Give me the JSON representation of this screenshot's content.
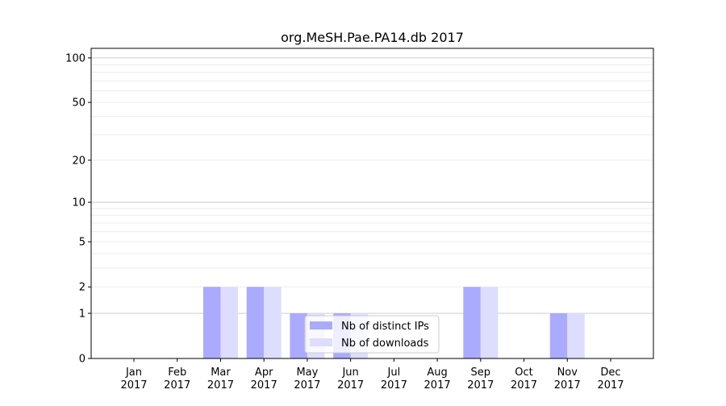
{
  "chart_data": {
    "type": "bar",
    "title": "org.MeSH.Pae.PA14.db 2017",
    "xlabel": "",
    "ylabel": "",
    "y_scale": "log(1+y)",
    "ylim": [
      0,
      116
    ],
    "y_ticks": [
      0,
      1,
      2,
      5,
      10,
      20,
      50,
      100
    ],
    "grid": true,
    "legend_position": "lower center",
    "categories": [
      "Jan\n2017",
      "Feb\n2017",
      "Mar\n2017",
      "Apr\n2017",
      "May\n2017",
      "Jun\n2017",
      "Jul\n2017",
      "Aug\n2017",
      "Sep\n2017",
      "Oct\n2017",
      "Nov\n2017",
      "Dec\n2017"
    ],
    "series": [
      {
        "name": "Nb of distinct IPs",
        "color": "#aaaaff",
        "values": [
          0,
          0,
          2,
          2,
          1,
          1,
          0,
          0,
          2,
          0,
          1,
          0
        ]
      },
      {
        "name": "Nb of downloads",
        "color": "#ddddff",
        "values": [
          0,
          0,
          2,
          2,
          1,
          1,
          0,
          0,
          2,
          0,
          1,
          0
        ]
      }
    ]
  }
}
